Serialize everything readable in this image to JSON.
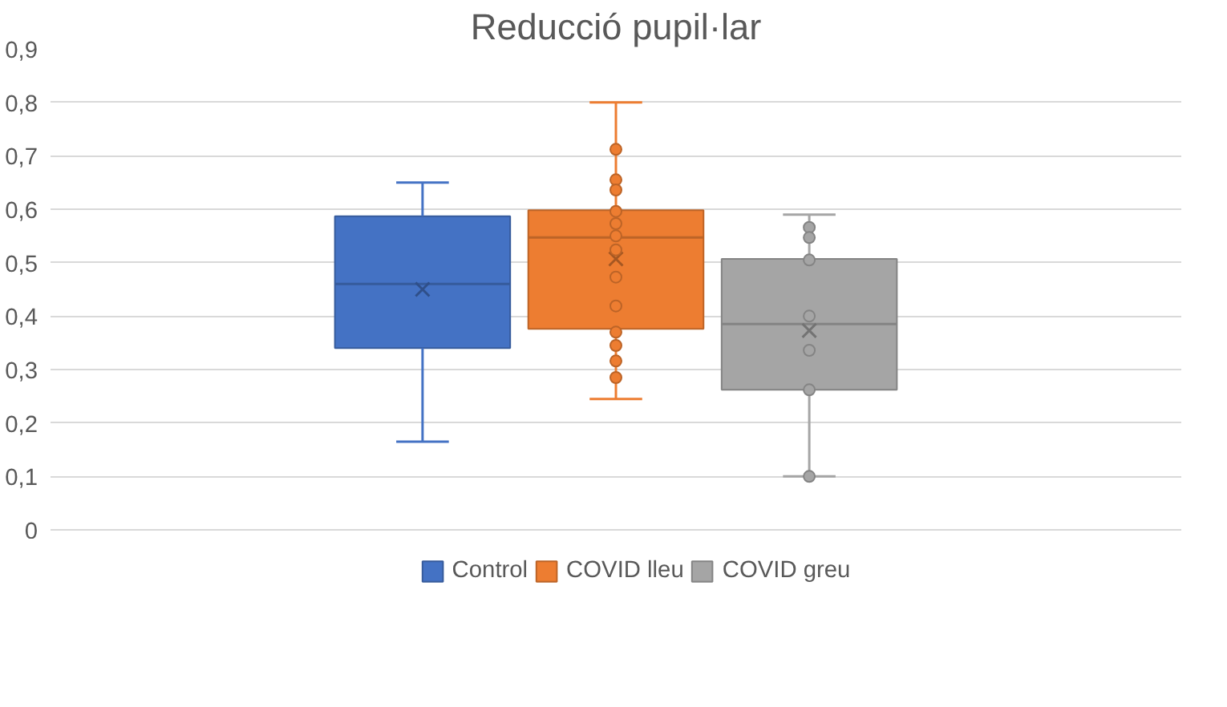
{
  "chart_data": {
    "type": "box",
    "title": "Reducció pupil·lar",
    "categories": [
      null
    ],
    "ylim": [
      0,
      0.9
    ],
    "yticks": [
      {
        "value": 0,
        "label": "0"
      },
      {
        "value": 0.1,
        "label": "0,1"
      },
      {
        "value": 0.2,
        "label": "0,2"
      },
      {
        "value": 0.3,
        "label": "0,3"
      },
      {
        "value": 0.4,
        "label": "0,4"
      },
      {
        "value": 0.5,
        "label": "0,5"
      },
      {
        "value": 0.6,
        "label": "0,6"
      },
      {
        "value": 0.7,
        "label": "0,7"
      },
      {
        "value": 0.8,
        "label": "0,8"
      },
      {
        "value": 0.9,
        "label": "0,9"
      }
    ],
    "grid": "y",
    "legend": "bottom",
    "series": [
      {
        "name": "Control",
        "color": "#4472c4",
        "boxes": [
          {
            "low": 0.165,
            "q1": 0.34,
            "median": 0.46,
            "q3": 0.587,
            "high": 0.65,
            "mean": 0.45
          }
        ]
      },
      {
        "name": "COVID lleu",
        "color": "#ed7d31",
        "boxes": [
          {
            "low": 0.245,
            "q1": 0.376,
            "median": 0.547,
            "q3": 0.598,
            "high": 0.8,
            "mean": 0.507,
            "outliers": [
              0.712,
              0.655,
              0.636,
              0.596,
              0.573,
              0.55,
              0.524,
              0.473,
              0.419,
              0.37,
              0.345,
              0.316,
              0.285
            ]
          }
        ]
      },
      {
        "name": "COVID greu",
        "color": "#a5a5a5",
        "boxes": [
          {
            "low": 0.1,
            "q1": 0.262,
            "median": 0.385,
            "q3": 0.507,
            "high": 0.59,
            "mean": 0.373,
            "outliers": [
              0.566,
              0.547,
              0.505,
              0.4,
              0.336,
              0.262,
              0.1
            ]
          }
        ]
      }
    ]
  }
}
